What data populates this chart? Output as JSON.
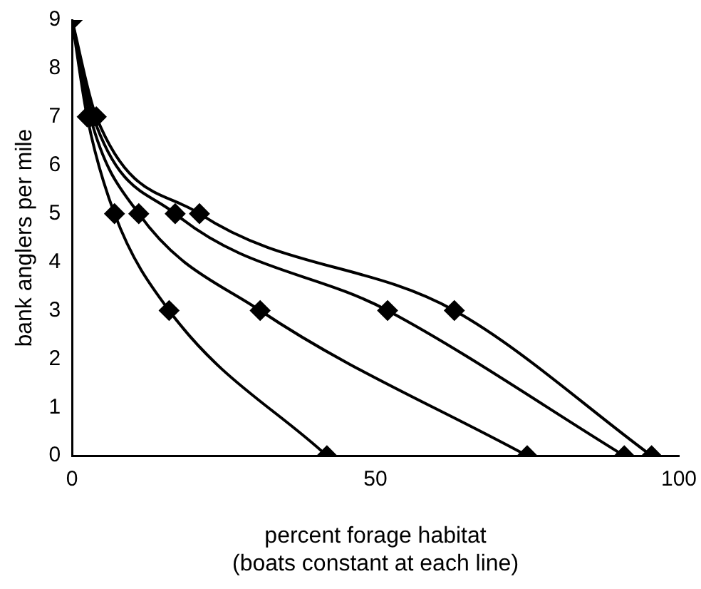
{
  "chart_data": {
    "type": "line",
    "xlabel": "percent forage habitat\n(boats constant at each line)",
    "ylabel": "bank anglers per mile",
    "xlim": [
      0,
      100
    ],
    "xticks": [
      0,
      50,
      100
    ],
    "ylim": [
      0,
      9
    ],
    "yticks": [
      0,
      1,
      2,
      3,
      4,
      5,
      6,
      7,
      8,
      9
    ],
    "grid": false,
    "legend": false,
    "marker": "diamond",
    "line_style": "solid",
    "series": [
      {
        "color": "#000000",
        "x": [
          0,
          2.5,
          7,
          16,
          42
        ],
        "values": [
          9,
          7,
          5,
          3,
          0
        ]
      },
      {
        "color": "#000000",
        "x": [
          0,
          3,
          11,
          31,
          75
        ],
        "values": [
          9,
          7,
          5,
          3,
          0
        ]
      },
      {
        "color": "#000000",
        "x": [
          0,
          3.5,
          17,
          52,
          91
        ],
        "values": [
          9,
          7,
          5,
          3,
          0
        ]
      },
      {
        "color": "#000000",
        "x": [
          0,
          4,
          21,
          63,
          95.5
        ],
        "values": [
          9,
          7,
          5,
          3,
          0
        ]
      }
    ]
  }
}
